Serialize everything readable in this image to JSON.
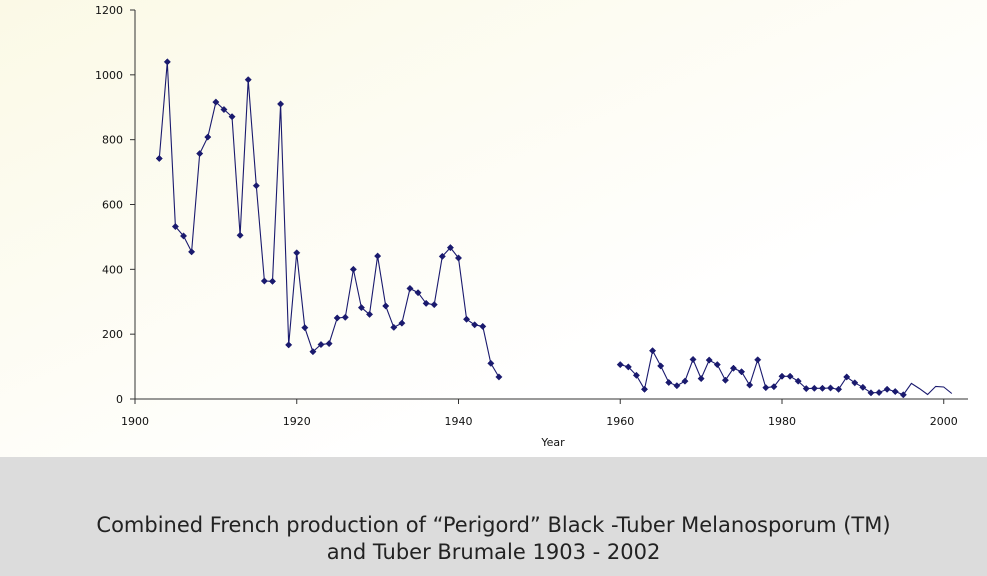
{
  "chart_data": {
    "type": "line",
    "title": "Combined French production of “Perigord” Black -Tuber Melanosporum (TM) and Tuber Brumale 1903 - 2002",
    "xlabel": "Year",
    "ylabel": "",
    "xlim": [
      1900,
      2003
    ],
    "ylim": [
      0,
      1200
    ],
    "xticks": [
      1900,
      1920,
      1940,
      1960,
      1980,
      2000
    ],
    "yticks": [
      0,
      200,
      400,
      600,
      800,
      1000,
      1200
    ],
    "grid": false,
    "line_color": "#1a1a6e",
    "series": [
      {
        "marker": "diamond",
        "x": [
          1903,
          1904,
          1905,
          1906,
          1907,
          1908,
          1909,
          1910,
          1911,
          1912,
          1913,
          1914,
          1915,
          1916,
          1917,
          1918,
          1919,
          1920,
          1921,
          1922,
          1923,
          1924,
          1925,
          1926,
          1927,
          1928,
          1929,
          1930,
          1931,
          1932,
          1933,
          1934,
          1935,
          1936,
          1937,
          1938,
          1939,
          1940,
          1941,
          1942,
          1943,
          1944,
          1945
        ],
        "y": [
          742,
          1040,
          532,
          503,
          454,
          757,
          808,
          916,
          893,
          871,
          505,
          985,
          658,
          364,
          363,
          910,
          167,
          451,
          220,
          146,
          168,
          171,
          250,
          252,
          400,
          282,
          261,
          441,
          287,
          221,
          234,
          341,
          328,
          295,
          291,
          440,
          467,
          435,
          246,
          229,
          224,
          110,
          68
        ]
      },
      {
        "marker": "diamond",
        "x": [
          1960,
          1961,
          1962,
          1963,
          1964,
          1965,
          1966,
          1967,
          1968,
          1969,
          1970,
          1971,
          1972,
          1973,
          1974,
          1975,
          1976,
          1977,
          1978,
          1979,
          1980,
          1981,
          1982,
          1983,
          1984,
          1985,
          1986,
          1987,
          1988,
          1989,
          1990,
          1991,
          1992,
          1993,
          1994,
          1995
        ],
        "y": [
          106,
          99,
          73,
          30,
          149,
          102,
          51,
          41,
          55,
          122,
          63,
          120,
          106,
          58,
          95,
          84,
          43,
          121,
          35,
          38,
          70,
          70,
          55,
          32,
          33,
          33,
          34,
          30,
          68,
          50,
          36,
          19,
          20,
          30,
          23,
          13
        ]
      },
      {
        "marker": "none",
        "x": [
          1995,
          1996,
          1997,
          1998,
          1999,
          2000,
          2001
        ],
        "y": [
          13,
          48,
          32,
          14,
          39,
          37,
          17
        ]
      }
    ]
  }
}
